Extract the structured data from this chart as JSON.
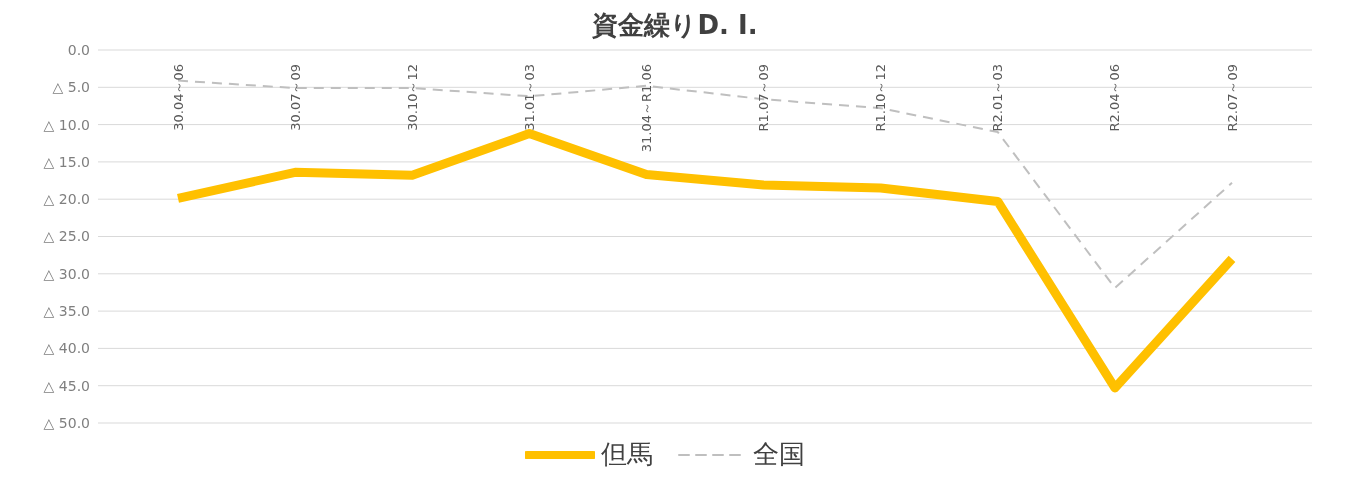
{
  "chart_data": {
    "type": "line",
    "title": "資金繰りD. I.",
    "categories": [
      "30.04～06",
      "30.07～09",
      "30.10～12",
      "31.01～03",
      "31.04～R1.06",
      "R1.07～09",
      "R1.10～12",
      "R2.01～03",
      "R2.04～06",
      "R2.07～09"
    ],
    "series": [
      {
        "name": "但馬",
        "color": "#ffc000",
        "line_style": "solid",
        "values": [
          -19.9,
          -16.4,
          -16.8,
          -11.2,
          -16.7,
          -18.1,
          -18.5,
          -20.3,
          -45.3,
          -28.0
        ]
      },
      {
        "name": "全国",
        "color": "#bfbfbf",
        "line_style": "dashed",
        "values": [
          -4.1,
          -5.1,
          -5.1,
          -6.2,
          -4.8,
          -6.6,
          -7.8,
          -11.0,
          -31.9,
          -17.8
        ]
      }
    ],
    "ylim": [
      -50,
      0
    ],
    "yticks": [
      {
        "value": 0,
        "label": "0.0"
      },
      {
        "value": -5,
        "label": "△ 5.0"
      },
      {
        "value": -10,
        "label": "△ 10.0"
      },
      {
        "value": -15,
        "label": "△ 15.0"
      },
      {
        "value": -20,
        "label": "△ 20.0"
      },
      {
        "value": -25,
        "label": "△ 25.0"
      },
      {
        "value": -30,
        "label": "△ 30.0"
      },
      {
        "value": -35,
        "label": "△ 35.0"
      },
      {
        "value": -40,
        "label": "△ 40.0"
      },
      {
        "value": -45,
        "label": "△ 45.0"
      },
      {
        "value": -50,
        "label": "△ 50.0"
      }
    ],
    "grid": "y",
    "legend": "bottom",
    "marker": "none"
  }
}
